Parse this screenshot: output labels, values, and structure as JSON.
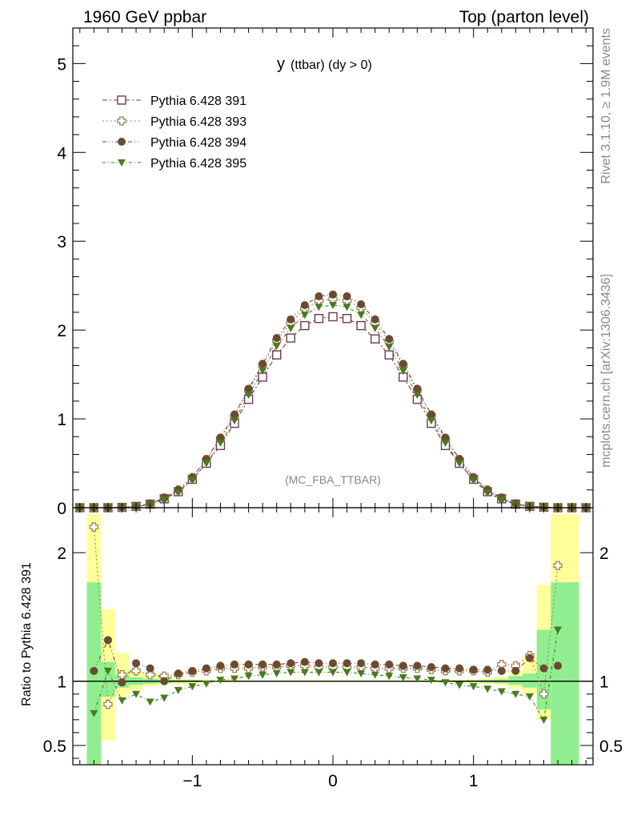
{
  "header": {
    "left": "1960 GeV ppbar",
    "right": "Top (parton level)"
  },
  "side_labels": {
    "rivet": "Rivet 3.1.10, ≥ 1.9M events",
    "mcplots": "mcplots.cern.ch [arXiv:1306.3436]"
  },
  "chart_data": [
    {
      "type": "scatter",
      "title_main": "y",
      "title_sub": "(ttbar) (dy > 0)",
      "watermark": "(MC_FBA_TTBAR)",
      "xlabel": "",
      "ylabel": "",
      "xlim": [
        -1.85,
        1.85
      ],
      "ylim": [
        0,
        5.4
      ],
      "y_ticks": [
        0,
        1,
        2,
        3,
        4,
        5
      ],
      "legend_position": "top-left",
      "x": [
        -1.8,
        -1.7,
        -1.6,
        -1.5,
        -1.4,
        -1.3,
        -1.2,
        -1.1,
        -1.0,
        -0.9,
        -0.8,
        -0.7,
        -0.6,
        -0.5,
        -0.4,
        -0.3,
        -0.2,
        -0.1,
        0.0,
        0.1,
        0.2,
        0.3,
        0.4,
        0.5,
        0.6,
        0.7,
        0.8,
        0.9,
        1.0,
        1.1,
        1.2,
        1.3,
        1.4,
        1.5,
        1.6,
        1.7,
        1.8
      ],
      "series": [
        {
          "name": "Pythia 6.428 391",
          "marker": "open-square",
          "color": "#6b3a52",
          "values": [
            0.0,
            0.0,
            0.0,
            0.003,
            0.015,
            0.04,
            0.1,
            0.18,
            0.32,
            0.5,
            0.7,
            0.95,
            1.22,
            1.47,
            1.72,
            1.91,
            2.05,
            2.13,
            2.15,
            2.13,
            2.05,
            1.9,
            1.72,
            1.47,
            1.22,
            0.95,
            0.7,
            0.5,
            0.32,
            0.18,
            0.1,
            0.04,
            0.015,
            0.005,
            0.0,
            0.0,
            0.0
          ]
        },
        {
          "name": "Pythia 6.428 393",
          "marker": "open-cross",
          "color": "#9a8556",
          "values": [
            0.0,
            0.0,
            0.0,
            0.004,
            0.016,
            0.044,
            0.11,
            0.2,
            0.34,
            0.54,
            0.78,
            1.03,
            1.32,
            1.6,
            1.88,
            2.08,
            2.24,
            2.33,
            2.35,
            2.33,
            2.25,
            2.08,
            1.87,
            1.6,
            1.32,
            1.04,
            0.77,
            0.54,
            0.34,
            0.2,
            0.11,
            0.045,
            0.016,
            0.006,
            0.0,
            0.0,
            0.0
          ]
        },
        {
          "name": "Pythia 6.428 394",
          "marker": "filled-circle",
          "color": "#6b4a33",
          "values": [
            0.0,
            0.0,
            0.0,
            0.004,
            0.017,
            0.046,
            0.11,
            0.2,
            0.34,
            0.55,
            0.79,
            1.05,
            1.34,
            1.62,
            1.91,
            2.12,
            2.28,
            2.38,
            2.4,
            2.38,
            2.29,
            2.12,
            1.9,
            1.62,
            1.34,
            1.05,
            0.79,
            0.55,
            0.34,
            0.2,
            0.11,
            0.046,
            0.017,
            0.006,
            0.0,
            0.0,
            0.0
          ]
        },
        {
          "name": "Pythia 6.428 395",
          "marker": "filled-triangle-down",
          "color": "#4a7a1e",
          "values": [
            0.0,
            0.0,
            0.0,
            0.003,
            0.013,
            0.034,
            0.09,
            0.17,
            0.31,
            0.5,
            0.73,
            0.98,
            1.27,
            1.54,
            1.82,
            2.02,
            2.17,
            2.26,
            2.28,
            2.26,
            2.17,
            2.02,
            1.81,
            1.54,
            1.27,
            0.98,
            0.73,
            0.5,
            0.31,
            0.17,
            0.09,
            0.034,
            0.013,
            0.005,
            0.0,
            0.0,
            0.0
          ]
        }
      ]
    },
    {
      "type": "scatter",
      "ylabel": "Ratio to Pythia 6.428 391",
      "xlabel": "",
      "xlim": [
        -1.85,
        1.85
      ],
      "ylim": [
        0.35,
        2.35
      ],
      "y_ticks": [
        0.5,
        1,
        2
      ],
      "x_ticks": [
        -1,
        0,
        1
      ],
      "reference_line": 1,
      "bands": {
        "green_color": "#90ee90",
        "yellow_color": "#ffff99",
        "x_edges": [
          -1.75,
          -1.65,
          -1.55,
          -1.45,
          -1.35,
          -1.25,
          -1.15,
          -1.05,
          -0.95,
          -0.85,
          -0.75,
          -0.65,
          0.65,
          0.75,
          0.85,
          0.95,
          1.05,
          1.15,
          1.25,
          1.35,
          1.45,
          1.55,
          1.65,
          1.75
        ],
        "green": [
          [
            0.3,
            1.77
          ],
          [
            0.88,
            1.15
          ],
          [
            0.95,
            1.05
          ],
          [
            0.97,
            1.03
          ],
          [
            0.98,
            1.02
          ],
          [
            0.985,
            1.015
          ],
          [
            0.99,
            1.01
          ],
          [
            0.992,
            1.008
          ],
          [
            0.994,
            1.006
          ],
          [
            0.995,
            1.005
          ],
          [
            0.996,
            1.004
          ],
          [
            0.997,
            1.003
          ],
          [
            0.996,
            1.004
          ],
          [
            0.995,
            1.005
          ],
          [
            0.994,
            1.006
          ],
          [
            0.992,
            1.008
          ],
          [
            0.99,
            1.01
          ],
          [
            0.985,
            1.015
          ],
          [
            0.97,
            1.04
          ],
          [
            0.95,
            1.06
          ],
          [
            0.78,
            1.4
          ],
          [
            0.3,
            1.77
          ],
          [
            0.3,
            1.77
          ]
        ],
        "yellow": [
          [
            0.3,
            2.3
          ],
          [
            0.54,
            1.56
          ],
          [
            0.88,
            1.22
          ],
          [
            0.93,
            1.08
          ],
          [
            0.96,
            1.05
          ],
          [
            0.97,
            1.035
          ],
          [
            0.98,
            1.02
          ],
          [
            0.985,
            1.015
          ],
          [
            0.988,
            1.012
          ],
          [
            0.99,
            1.01
          ],
          [
            0.992,
            1.008
          ],
          [
            0.994,
            1.006
          ],
          [
            0.992,
            1.008
          ],
          [
            0.99,
            1.01
          ],
          [
            0.988,
            1.012
          ],
          [
            0.985,
            1.015
          ],
          [
            0.98,
            1.02
          ],
          [
            0.97,
            1.035
          ],
          [
            0.94,
            1.08
          ],
          [
            0.9,
            1.2
          ],
          [
            0.7,
            1.75
          ],
          [
            0.3,
            2.3
          ],
          [
            0.3,
            2.3
          ]
        ]
      },
      "x": [
        -1.7,
        -1.6,
        -1.5,
        -1.4,
        -1.3,
        -1.2,
        -1.1,
        -1.0,
        -0.9,
        -0.8,
        -0.7,
        -0.6,
        -0.5,
        -0.4,
        -0.3,
        -0.2,
        -0.1,
        0.0,
        0.1,
        0.2,
        0.3,
        0.4,
        0.5,
        0.6,
        0.7,
        0.8,
        0.9,
        1.0,
        1.1,
        1.2,
        1.3,
        1.4,
        1.5,
        1.6
      ],
      "series": [
        {
          "name": "Pythia 6.428 393",
          "marker": "open-cross",
          "color": "#9a8556",
          "values": [
            2.2,
            0.82,
            1.05,
            1.08,
            1.05,
            1.04,
            1.05,
            1.07,
            1.08,
            1.1,
            1.1,
            1.1,
            1.11,
            1.11,
            1.12,
            1.12,
            1.11,
            1.11,
            1.11,
            1.11,
            1.1,
            1.1,
            1.1,
            1.1,
            1.09,
            1.08,
            1.08,
            1.08,
            1.07,
            1.13,
            1.12,
            1.2,
            0.9,
            1.9
          ]
        },
        {
          "name": "Pythia 6.428 394",
          "marker": "filled-circle",
          "color": "#6b4a33",
          "values": [
            1.08,
            1.32,
            0.99,
            1.14,
            1.1,
            1.0,
            1.06,
            1.08,
            1.1,
            1.12,
            1.13,
            1.13,
            1.13,
            1.13,
            1.14,
            1.15,
            1.14,
            1.14,
            1.14,
            1.14,
            1.13,
            1.13,
            1.12,
            1.12,
            1.11,
            1.1,
            1.1,
            1.09,
            1.09,
            1.08,
            1.08,
            1.18,
            1.1,
            1.12
          ]
        },
        {
          "name": "Pythia 6.428 395",
          "marker": "filled-triangle-down",
          "color": "#4a7a1e",
          "values": [
            0.75,
            1.08,
            0.85,
            0.9,
            0.84,
            0.87,
            0.93,
            0.96,
            0.98,
            1.01,
            1.02,
            1.04,
            1.05,
            1.06,
            1.07,
            1.07,
            1.07,
            1.07,
            1.07,
            1.06,
            1.05,
            1.04,
            1.03,
            1.02,
            1.01,
            0.99,
            0.97,
            0.96,
            0.94,
            0.92,
            0.9,
            0.88,
            0.7,
            1.4
          ]
        }
      ]
    }
  ]
}
